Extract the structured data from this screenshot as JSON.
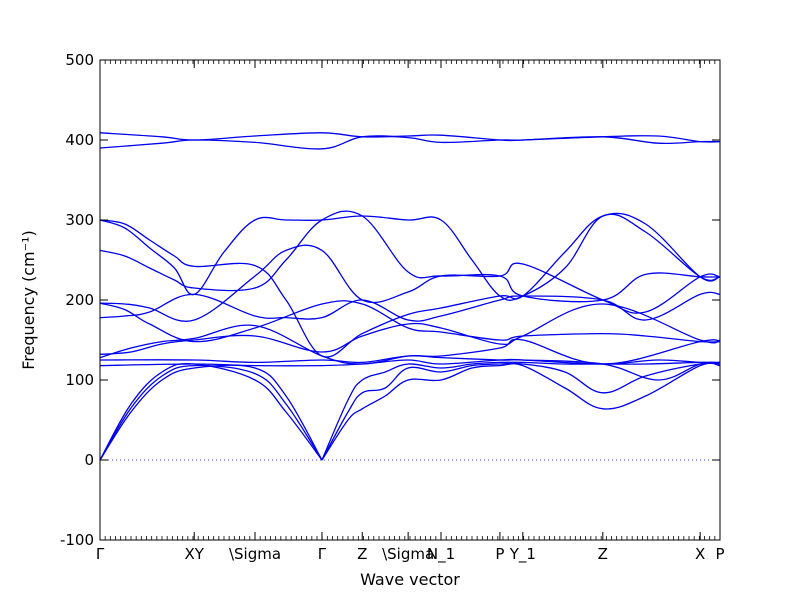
{
  "chart_data": {
    "type": "line",
    "title": "",
    "xlabel": "Wave vector",
    "ylabel": "Frequency (cm⁻¹)",
    "ylim": [
      -100,
      500
    ],
    "y_ticks": [
      -100,
      0,
      100,
      200,
      300,
      400,
      500
    ],
    "x_ticks": [
      {
        "label": "Γ",
        "x": 0.0
      },
      {
        "label": "XY",
        "x": 0.152
      },
      {
        "label": "\\Sigma",
        "x": 0.25
      },
      {
        "label": "Γ",
        "x": 0.358
      },
      {
        "label": "Z",
        "x": 0.423
      },
      {
        "label": "\\Sigma",
        "x": 0.497
      },
      {
        "label": "N_1",
        "x": 0.55
      },
      {
        "label": "P",
        "x": 0.645
      },
      {
        "label": "Y_1",
        "x": 0.682
      },
      {
        "label": "Z",
        "x": 0.811
      },
      {
        "label": "X",
        "x": 0.968
      },
      {
        "label": "P",
        "x": 1.0
      }
    ],
    "xlim": [
      0,
      1
    ],
    "zero_line": {
      "y": 0,
      "style": "dotted"
    },
    "series_color": "#0000ee",
    "series": [
      {
        "x": [
          0,
          0.05,
          0.1,
          0.152,
          0.25,
          0.3,
          0.358
        ],
        "y": [
          0,
          70,
          110,
          120,
          100,
          60,
          0
        ]
      },
      {
        "x": [
          0,
          0.05,
          0.1,
          0.152,
          0.25,
          0.3,
          0.358
        ],
        "y": [
          0,
          65,
          105,
          118,
          108,
          70,
          0
        ]
      },
      {
        "x": [
          0,
          0.05,
          0.1,
          0.152,
          0.25,
          0.3,
          0.358
        ],
        "y": [
          0,
          60,
          100,
          115,
          115,
          80,
          0
        ]
      },
      {
        "x": [
          0.358,
          0.4,
          0.423,
          0.46,
          0.497,
          0.55,
          0.6,
          0.645,
          0.682,
          0.75,
          0.811,
          0.88,
          0.968,
          1.0
        ],
        "y": [
          0,
          50,
          64,
          80,
          100,
          100,
          115,
          118,
          118,
          90,
          64,
          80,
          118,
          118
        ]
      },
      {
        "x": [
          0.358,
          0.4,
          0.423,
          0.46,
          0.497,
          0.55,
          0.6,
          0.645,
          0.682,
          0.75,
          0.811,
          0.88,
          0.968,
          1.0
        ],
        "y": [
          0,
          60,
          84,
          90,
          115,
          110,
          118,
          120,
          120,
          110,
          84,
          105,
          120,
          120
        ]
      },
      {
        "x": [
          0.358,
          0.4,
          0.423,
          0.46,
          0.497,
          0.55,
          0.6,
          0.645,
          0.682,
          0.75,
          0.811,
          0.88,
          0.968,
          1.0
        ],
        "y": [
          0,
          75,
          100,
          110,
          120,
          115,
          120,
          122,
          122,
          120,
          120,
          120,
          122,
          122
        ]
      },
      {
        "x": [
          0,
          0.152,
          0.25,
          0.358,
          0.423,
          0.497,
          0.55,
          0.645,
          0.682,
          0.811,
          0.9,
          0.968,
          1.0
        ],
        "y": [
          118,
          120,
          118,
          118,
          120,
          125,
          120,
          125,
          125,
          120,
          100,
          120,
          120
        ]
      },
      {
        "x": [
          0,
          0.152,
          0.25,
          0.358,
          0.423,
          0.497,
          0.55,
          0.645,
          0.682,
          0.811,
          0.9,
          0.968,
          1.0
        ],
        "y": [
          125,
          125,
          122,
          125,
          122,
          130,
          128,
          125,
          125,
          120,
          125,
          122,
          122
        ]
      },
      {
        "x": [
          0,
          0.05,
          0.1,
          0.152,
          0.25,
          0.358,
          0.423,
          0.497,
          0.55,
          0.645,
          0.682,
          0.811,
          0.968,
          1.0
        ],
        "y": [
          128,
          140,
          148,
          152,
          168,
          130,
          120,
          130,
          130,
          140,
          150,
          120,
          148,
          148
        ]
      },
      {
        "x": [
          0,
          0.05,
          0.1,
          0.152,
          0.25,
          0.358,
          0.423,
          0.497,
          0.55,
          0.645,
          0.682,
          0.811,
          0.968,
          1.0
        ],
        "y": [
          132,
          135,
          145,
          150,
          155,
          135,
          155,
          170,
          165,
          145,
          155,
          195,
          150,
          150
        ]
      },
      {
        "x": [
          0,
          0.04,
          0.08,
          0.152,
          0.25,
          0.358,
          0.423,
          0.497,
          0.55,
          0.645,
          0.682,
          0.811,
          0.88,
          0.968,
          1.0
        ],
        "y": [
          196,
          188,
          170,
          148,
          165,
          195,
          195,
          165,
          160,
          150,
          155,
          158,
          155,
          148,
          148
        ]
      },
      {
        "x": [
          0,
          0.04,
          0.08,
          0.152,
          0.25,
          0.3,
          0.358,
          0.423,
          0.497,
          0.55,
          0.645,
          0.682,
          0.811,
          0.88,
          0.968,
          1.0
        ],
        "y": [
          178,
          180,
          185,
          207,
          180,
          178,
          178,
          200,
          175,
          180,
          200,
          205,
          200,
          175,
          207,
          207
        ]
      },
      {
        "x": [
          0,
          0.04,
          0.08,
          0.152,
          0.25,
          0.3,
          0.358,
          0.423,
          0.497,
          0.55,
          0.645,
          0.682,
          0.811,
          0.88,
          0.968,
          1.0
        ],
        "y": [
          196,
          195,
          190,
          175,
          230,
          262,
          262,
          200,
          210,
          230,
          230,
          245,
          200,
          185,
          229,
          229
        ]
      },
      {
        "x": [
          0,
          0.04,
          0.08,
          0.12,
          0.152,
          0.25,
          0.3,
          0.358,
          0.423,
          0.497,
          0.55,
          0.645,
          0.682,
          0.811,
          0.88,
          0.968,
          1.0
        ],
        "y": [
          262,
          255,
          240,
          225,
          215,
          215,
          250,
          300,
          305,
          235,
          230,
          230,
          205,
          200,
          232,
          229,
          229
        ]
      },
      {
        "x": [
          0,
          0.04,
          0.08,
          0.12,
          0.152,
          0.25,
          0.3,
          0.358,
          0.423,
          0.497,
          0.55,
          0.645,
          0.682,
          0.75,
          0.811,
          0.88,
          0.968,
          1.0
        ],
        "y": [
          300,
          295,
          275,
          255,
          242,
          243,
          200,
          130,
          158,
          182,
          190,
          205,
          205,
          260,
          305,
          295,
          229,
          229
        ]
      },
      {
        "x": [
          0,
          0.04,
          0.08,
          0.12,
          0.152,
          0.2,
          0.25,
          0.3,
          0.358,
          0.423,
          0.497,
          0.55,
          0.6,
          0.645,
          0.682,
          0.75,
          0.811,
          0.88,
          0.968,
          1.0
        ],
        "y": [
          300,
          290,
          265,
          240,
          207,
          260,
          300,
          300,
          300,
          305,
          300,
          300,
          250,
          205,
          205,
          240,
          305,
          285,
          229,
          229
        ]
      },
      {
        "x": [
          0,
          0.1,
          0.152,
          0.25,
          0.358,
          0.423,
          0.497,
          0.55,
          0.645,
          0.682,
          0.811,
          0.9,
          0.968,
          1.0
        ],
        "y": [
          390,
          396,
          400,
          397,
          389,
          404,
          403,
          397,
          400,
          400,
          404,
          396,
          398,
          398
        ]
      },
      {
        "x": [
          0,
          0.1,
          0.152,
          0.25,
          0.358,
          0.423,
          0.497,
          0.55,
          0.645,
          0.682,
          0.811,
          0.9,
          0.968,
          1.0
        ],
        "y": [
          409,
          404,
          400,
          405,
          409,
          404,
          405,
          406,
          400,
          400,
          404,
          405,
          398,
          398
        ]
      }
    ]
  }
}
